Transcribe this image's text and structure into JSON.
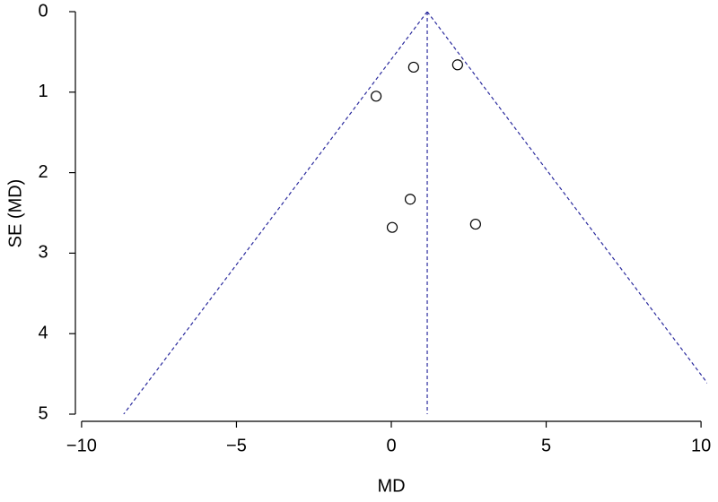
{
  "chart_data": {
    "type": "funnel",
    "x_label": "MD",
    "y_label": "SE (MD)",
    "x": [
      0.72,
      2.14,
      -0.49,
      0.61,
      2.72,
      0.03
    ],
    "values": [
      0.69,
      0.66,
      1.05,
      2.33,
      2.64,
      2.68
    ],
    "pooled_md": 1.16,
    "z": 1.96,
    "xlim": [
      -10.2,
      10.2
    ],
    "ylim": [
      5,
      0
    ],
    "xticks": [
      {
        "value": -10,
        "label": "−10"
      },
      {
        "value": -5,
        "label": "−5"
      },
      0,
      5,
      10
    ],
    "yticks": [
      0,
      1,
      2,
      3,
      4,
      5
    ],
    "point_color": "#000000",
    "line_color": "#2b2b9e"
  }
}
